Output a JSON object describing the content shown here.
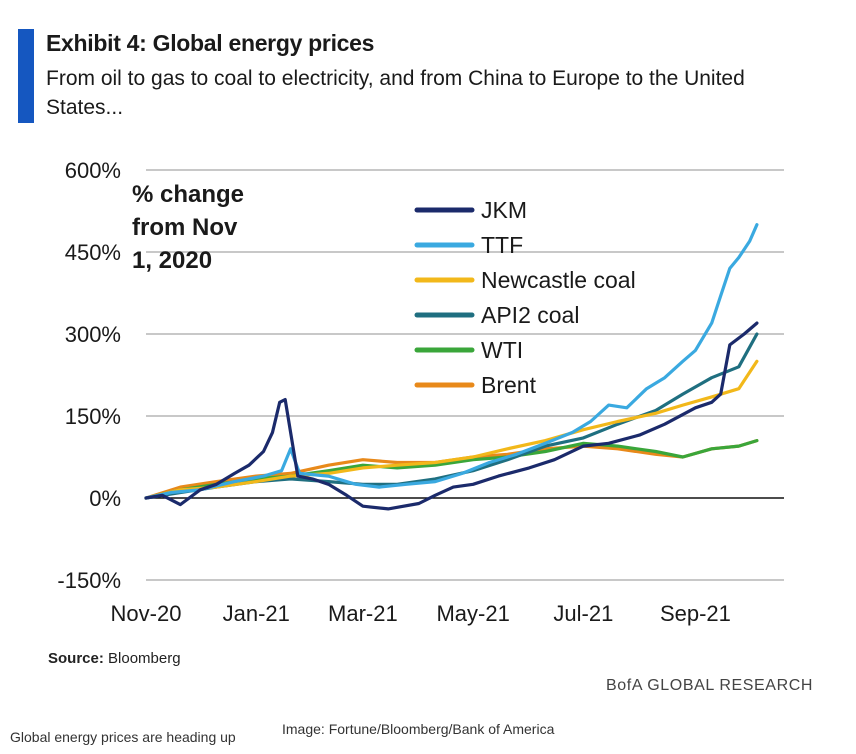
{
  "header": {
    "title": "Exhibit 4: Global energy prices",
    "subtitle": "From oil to gas to coal to electricity, and from China to Europe to the United States..."
  },
  "footer": {
    "source_label": "Source:",
    "source_value": "Bloomberg",
    "brand": "BofA GLOBAL RESEARCH",
    "caption": "Global energy prices are heading up",
    "credit": "Image: Fortune/Bloomberg/Bank of America"
  },
  "colors": {
    "accent": "#1557c0",
    "JKM": "#1b2a6b",
    "TTF": "#3aa9e0",
    "Newcastle coal": "#f2b81a",
    "API2 coal": "#1f6f80",
    "WTI": "#3aa63a",
    "Brent": "#e8891a"
  },
  "chart_data": {
    "type": "line",
    "title": "Exhibit 4: Global energy prices",
    "subtitle": "From oil to gas to coal to electricity, and from China to Europe to the United States...",
    "annotation": "% change from Nov 1, 2020",
    "annotation_lines": [
      "% change",
      "from Nov",
      "1, 2020"
    ],
    "ylim": [
      -150,
      600
    ],
    "y_ticks": [
      600,
      450,
      300,
      150,
      0,
      -150
    ],
    "y_tick_labels": [
      "600%",
      "450%",
      "300%",
      "150%",
      "0%",
      "-150%"
    ],
    "x_ticks": [
      "2020-11-01",
      "2021-01-01",
      "2021-03-01",
      "2021-05-01",
      "2021-07-01",
      "2021-09-01"
    ],
    "x_tick_labels": [
      "Nov-20",
      "Jan-21",
      "Mar-21",
      "May-21",
      "Jul-21",
      "Sep-21"
    ],
    "xlim": [
      "2020-11-01",
      "2021-10-20"
    ],
    "grid": "horizontal",
    "legend": "top-center",
    "series": [
      {
        "name": "JKM",
        "points": [
          [
            "2020-11-01",
            0
          ],
          [
            "2020-11-10",
            5
          ],
          [
            "2020-11-20",
            -12
          ],
          [
            "2020-12-01",
            15
          ],
          [
            "2020-12-10",
            25
          ],
          [
            "2020-12-20",
            45
          ],
          [
            "2020-12-28",
            60
          ],
          [
            "2021-01-05",
            85
          ],
          [
            "2021-01-10",
            120
          ],
          [
            "2021-01-14",
            175
          ],
          [
            "2021-01-17",
            180
          ],
          [
            "2021-01-20",
            120
          ],
          [
            "2021-01-24",
            40
          ],
          [
            "2021-02-01",
            35
          ],
          [
            "2021-02-10",
            25
          ],
          [
            "2021-02-20",
            5
          ],
          [
            "2021-03-01",
            -15
          ],
          [
            "2021-03-15",
            -20
          ],
          [
            "2021-04-01",
            -10
          ],
          [
            "2021-04-10",
            5
          ],
          [
            "2021-04-20",
            20
          ],
          [
            "2021-05-01",
            25
          ],
          [
            "2021-05-15",
            40
          ],
          [
            "2021-06-01",
            55
          ],
          [
            "2021-06-15",
            70
          ],
          [
            "2021-07-01",
            95
          ],
          [
            "2021-07-15",
            100
          ],
          [
            "2021-08-01",
            115
          ],
          [
            "2021-08-15",
            135
          ],
          [
            "2021-09-01",
            165
          ],
          [
            "2021-09-10",
            175
          ],
          [
            "2021-09-15",
            190
          ],
          [
            "2021-09-20",
            280
          ],
          [
            "2021-09-28",
            300
          ],
          [
            "2021-10-05",
            320
          ]
        ]
      },
      {
        "name": "TTF",
        "points": [
          [
            "2020-11-01",
            0
          ],
          [
            "2020-11-15",
            10
          ],
          [
            "2020-12-01",
            15
          ],
          [
            "2020-12-20",
            30
          ],
          [
            "2021-01-05",
            40
          ],
          [
            "2021-01-15",
            50
          ],
          [
            "2021-01-20",
            90
          ],
          [
            "2021-01-25",
            45
          ],
          [
            "2021-02-10",
            40
          ],
          [
            "2021-02-25",
            25
          ],
          [
            "2021-03-10",
            20
          ],
          [
            "2021-03-25",
            25
          ],
          [
            "2021-04-10",
            30
          ],
          [
            "2021-04-25",
            45
          ],
          [
            "2021-05-10",
            65
          ],
          [
            "2021-05-25",
            80
          ],
          [
            "2021-06-10",
            100
          ],
          [
            "2021-06-25",
            120
          ],
          [
            "2021-07-05",
            140
          ],
          [
            "2021-07-15",
            170
          ],
          [
            "2021-07-25",
            165
          ],
          [
            "2021-08-05",
            200
          ],
          [
            "2021-08-15",
            220
          ],
          [
            "2021-08-25",
            250
          ],
          [
            "2021-09-01",
            270
          ],
          [
            "2021-09-10",
            320
          ],
          [
            "2021-09-15",
            370
          ],
          [
            "2021-09-20",
            420
          ],
          [
            "2021-09-25",
            440
          ],
          [
            "2021-10-01",
            470
          ],
          [
            "2021-10-05",
            500
          ]
        ]
      },
      {
        "name": "Newcastle coal",
        "points": [
          [
            "2020-11-01",
            0
          ],
          [
            "2020-11-20",
            15
          ],
          [
            "2020-12-10",
            20
          ],
          [
            "2021-01-01",
            30
          ],
          [
            "2021-01-20",
            40
          ],
          [
            "2021-02-10",
            45
          ],
          [
            "2021-03-01",
            55
          ],
          [
            "2021-03-20",
            60
          ],
          [
            "2021-04-10",
            65
          ],
          [
            "2021-05-01",
            75
          ],
          [
            "2021-05-20",
            90
          ],
          [
            "2021-06-10",
            105
          ],
          [
            "2021-07-01",
            125
          ],
          [
            "2021-07-20",
            140
          ],
          [
            "2021-08-10",
            155
          ],
          [
            "2021-08-25",
            170
          ],
          [
            "2021-09-10",
            185
          ],
          [
            "2021-09-25",
            200
          ],
          [
            "2021-10-05",
            250
          ]
        ]
      },
      {
        "name": "API2 coal",
        "points": [
          [
            "2020-11-01",
            0
          ],
          [
            "2020-11-20",
            10
          ],
          [
            "2020-12-10",
            20
          ],
          [
            "2021-01-01",
            30
          ],
          [
            "2021-01-20",
            35
          ],
          [
            "2021-02-10",
            30
          ],
          [
            "2021-03-01",
            25
          ],
          [
            "2021-03-20",
            25
          ],
          [
            "2021-04-10",
            35
          ],
          [
            "2021-05-01",
            50
          ],
          [
            "2021-05-20",
            70
          ],
          [
            "2021-06-10",
            95
          ],
          [
            "2021-07-01",
            110
          ],
          [
            "2021-07-20",
            135
          ],
          [
            "2021-08-10",
            160
          ],
          [
            "2021-08-25",
            190
          ],
          [
            "2021-09-10",
            220
          ],
          [
            "2021-09-25",
            240
          ],
          [
            "2021-10-05",
            300
          ]
        ]
      },
      {
        "name": "WTI",
        "points": [
          [
            "2020-11-01",
            0
          ],
          [
            "2020-11-20",
            15
          ],
          [
            "2020-12-10",
            25
          ],
          [
            "2021-01-01",
            35
          ],
          [
            "2021-01-20",
            40
          ],
          [
            "2021-02-10",
            50
          ],
          [
            "2021-03-01",
            60
          ],
          [
            "2021-03-20",
            55
          ],
          [
            "2021-04-10",
            60
          ],
          [
            "2021-05-01",
            70
          ],
          [
            "2021-05-20",
            75
          ],
          [
            "2021-06-10",
            85
          ],
          [
            "2021-07-01",
            100
          ],
          [
            "2021-07-20",
            95
          ],
          [
            "2021-08-10",
            85
          ],
          [
            "2021-08-25",
            75
          ],
          [
            "2021-09-10",
            90
          ],
          [
            "2021-09-25",
            95
          ],
          [
            "2021-10-05",
            105
          ]
        ]
      },
      {
        "name": "Brent",
        "points": [
          [
            "2020-11-01",
            0
          ],
          [
            "2020-11-20",
            20
          ],
          [
            "2020-12-10",
            30
          ],
          [
            "2021-01-01",
            40
          ],
          [
            "2021-01-20",
            45
          ],
          [
            "2021-02-10",
            60
          ],
          [
            "2021-03-01",
            70
          ],
          [
            "2021-03-20",
            65
          ],
          [
            "2021-04-10",
            65
          ],
          [
            "2021-05-01",
            75
          ],
          [
            "2021-05-20",
            80
          ],
          [
            "2021-06-10",
            90
          ],
          [
            "2021-07-01",
            95
          ],
          [
            "2021-07-20",
            90
          ],
          [
            "2021-08-10",
            80
          ],
          [
            "2021-08-25",
            75
          ],
          [
            "2021-09-10",
            90
          ],
          [
            "2021-09-25",
            95
          ],
          [
            "2021-10-05",
            105
          ]
        ]
      }
    ]
  }
}
